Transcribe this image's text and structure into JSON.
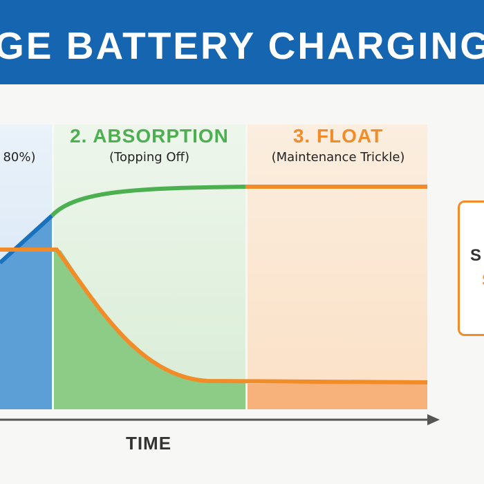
{
  "header": {
    "title": "GE BATTERY CHARGING P"
  },
  "phases": [
    {
      "name": "",
      "subtitle": "80%)",
      "color": "#1a72bd"
    },
    {
      "name": "2. ABSORPTION",
      "subtitle": "(Topping Off)",
      "color": "#4caf50"
    },
    {
      "name": "3. FLOAT",
      "subtitle": "(Maintenance Trickle)",
      "color": "#f28c28"
    }
  ],
  "axis": {
    "x_label": "TIME"
  },
  "side_box": {
    "line1": "S",
    "line2": "S"
  },
  "colors": {
    "header": "#1565b0",
    "bulk": "#1a72bd",
    "absorption": "#4caf50",
    "float": "#f28c28"
  }
}
